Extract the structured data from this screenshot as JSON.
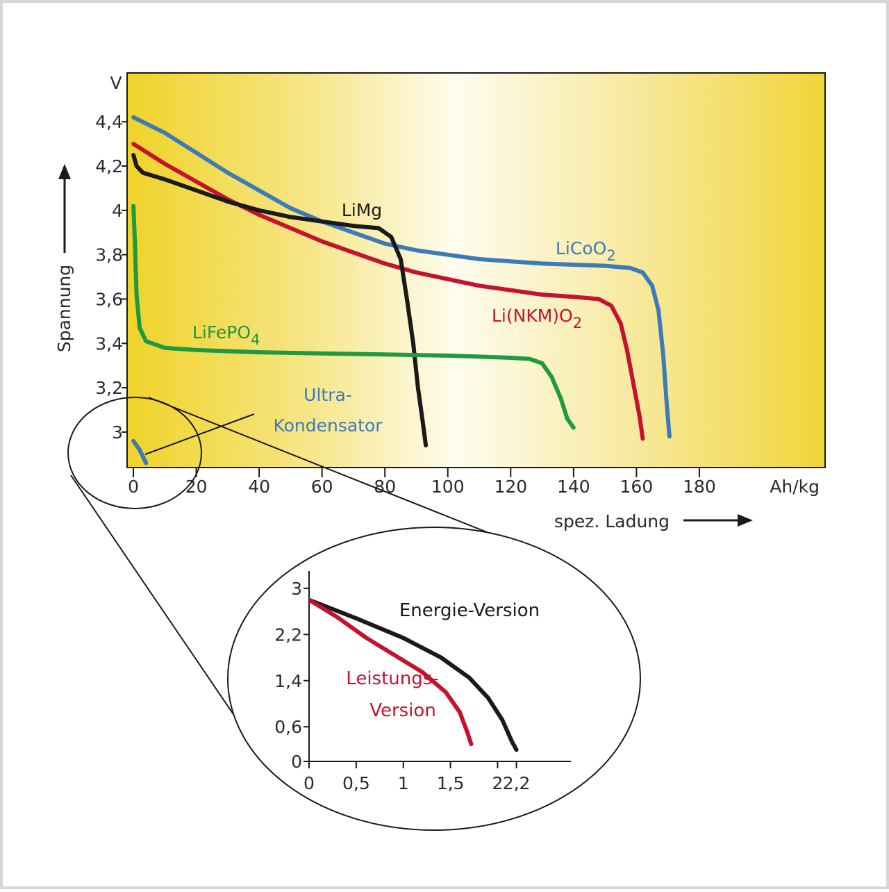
{
  "chart_data": [
    {
      "type": "line",
      "xlabel": "spez. Ladung",
      "ylabel": "Spannung",
      "x_unit": "Ah/kg",
      "y_unit": "V",
      "xlim": [
        -2,
        220
      ],
      "ylim": [
        2.84,
        4.62
      ],
      "x_ticks": [
        0,
        20,
        40,
        60,
        80,
        100,
        120,
        140,
        160,
        180
      ],
      "x_tick_labels": [
        "0",
        "20",
        "40",
        "60",
        "80",
        "100",
        "120",
        "140",
        "160",
        "180"
      ],
      "y_ticks": [
        3.0,
        3.2,
        3.4,
        3.6,
        3.8,
        4.0,
        4.2,
        4.4
      ],
      "y_tick_labels": [
        "3",
        "3,2",
        "3,4",
        "3,6",
        "3,8",
        "4",
        "4,2",
        "4,4"
      ],
      "background": "yellow gradient",
      "series": [
        {
          "name": "LiCoO2",
          "label_main": "LiCoO",
          "label_sub": "2",
          "color": "#3d7ab8",
          "points": [
            [
              0,
              4.42
            ],
            [
              10,
              4.35
            ],
            [
              20,
              4.26
            ],
            [
              30,
              4.17
            ],
            [
              40,
              4.09
            ],
            [
              50,
              4.01
            ],
            [
              60,
              3.95
            ],
            [
              70,
              3.9
            ],
            [
              80,
              3.85
            ],
            [
              90,
              3.82
            ],
            [
              100,
              3.8
            ],
            [
              110,
              3.78
            ],
            [
              120,
              3.77
            ],
            [
              130,
              3.76
            ],
            [
              140,
              3.755
            ],
            [
              150,
              3.75
            ],
            [
              158,
              3.74
            ],
            [
              162,
              3.72
            ],
            [
              165,
              3.66
            ],
            [
              167,
              3.55
            ],
            [
              168.5,
              3.35
            ],
            [
              169.5,
              3.15
            ],
            [
              170.5,
              2.98
            ]
          ]
        },
        {
          "name": "Li(NKM)O2",
          "label_main": "Li(NKM)O",
          "label_sub": "2",
          "color": "#c4122f",
          "points": [
            [
              0,
              4.3
            ],
            [
              10,
              4.21
            ],
            [
              20,
              4.13
            ],
            [
              30,
              4.05
            ],
            [
              40,
              3.98
            ],
            [
              50,
              3.92
            ],
            [
              60,
              3.86
            ],
            [
              70,
              3.81
            ],
            [
              80,
              3.76
            ],
            [
              90,
              3.72
            ],
            [
              100,
              3.69
            ],
            [
              110,
              3.66
            ],
            [
              120,
              3.64
            ],
            [
              130,
              3.62
            ],
            [
              140,
              3.61
            ],
            [
              148,
              3.6
            ],
            [
              152,
              3.57
            ],
            [
              155,
              3.49
            ],
            [
              157,
              3.37
            ],
            [
              159,
              3.22
            ],
            [
              161,
              3.07
            ],
            [
              162,
              2.97
            ]
          ]
        },
        {
          "name": "LiMg",
          "label_main": "LiMg",
          "label_sub": "",
          "color": "#1a1a1a",
          "points": [
            [
              0,
              4.25
            ],
            [
              1,
              4.2
            ],
            [
              3,
              4.17
            ],
            [
              10,
              4.14
            ],
            [
              20,
              4.09
            ],
            [
              30,
              4.04
            ],
            [
              40,
              4.0
            ],
            [
              50,
              3.97
            ],
            [
              60,
              3.95
            ],
            [
              70,
              3.93
            ],
            [
              78,
              3.92
            ],
            [
              82,
              3.88
            ],
            [
              85,
              3.78
            ],
            [
              87,
              3.6
            ],
            [
              89,
              3.4
            ],
            [
              90.5,
              3.2
            ],
            [
              92,
              3.05
            ],
            [
              93,
              2.94
            ]
          ]
        },
        {
          "name": "LiFePO4",
          "label_main": "LiFePO",
          "label_sub": "4",
          "color": "#1f9a3e",
          "points": [
            [
              0,
              4.02
            ],
            [
              0.5,
              3.85
            ],
            [
              1,
              3.62
            ],
            [
              2,
              3.47
            ],
            [
              4,
              3.41
            ],
            [
              10,
              3.38
            ],
            [
              20,
              3.37
            ],
            [
              40,
              3.36
            ],
            [
              60,
              3.355
            ],
            [
              80,
              3.35
            ],
            [
              100,
              3.345
            ],
            [
              110,
              3.34
            ],
            [
              120,
              3.335
            ],
            [
              126,
              3.33
            ],
            [
              130,
              3.31
            ],
            [
              133,
              3.25
            ],
            [
              136,
              3.15
            ],
            [
              138,
              3.06
            ],
            [
              140,
              3.02
            ]
          ]
        },
        {
          "name": "Ultra-Kondensator",
          "label_line1": "Ultra-",
          "label_line2": "Kondensator",
          "color": "#3d7ab8",
          "points": [
            [
              0,
              2.96
            ],
            [
              2,
              2.92
            ],
            [
              4,
              2.86
            ]
          ]
        }
      ]
    },
    {
      "type": "line",
      "x_ticks": [
        0,
        0.5,
        1,
        1.5,
        2,
        2.2
      ],
      "x_tick_labels": [
        "0",
        "0,5",
        "1",
        "1,5",
        "2",
        "2,2"
      ],
      "y_ticks": [
        0,
        0.6,
        1.4,
        2.2,
        3
      ],
      "y_tick_labels": [
        "0",
        "0,6",
        "1,4",
        "2,2",
        "3"
      ],
      "xlim": [
        0,
        2.8
      ],
      "ylim": [
        0,
        3.3
      ],
      "series": [
        {
          "name": "Energie-Version",
          "label_main": "Energie-Version",
          "color": "#1a1a1a",
          "points": [
            [
              0,
              2.8
            ],
            [
              0.5,
              2.48
            ],
            [
              1,
              2.14
            ],
            [
              1.4,
              1.8
            ],
            [
              1.7,
              1.45
            ],
            [
              1.9,
              1.1
            ],
            [
              2.05,
              0.72
            ],
            [
              2.15,
              0.35
            ],
            [
              2.2,
              0.2
            ]
          ]
        },
        {
          "name": "Leistungs-Version",
          "label_line1": "Leistungs-",
          "label_line2": "Version",
          "color": "#c4122f",
          "points": [
            [
              0,
              2.8
            ],
            [
              0.3,
              2.5
            ],
            [
              0.6,
              2.15
            ],
            [
              0.9,
              1.85
            ],
            [
              1.2,
              1.55
            ],
            [
              1.45,
              1.2
            ],
            [
              1.6,
              0.85
            ],
            [
              1.68,
              0.5
            ],
            [
              1.72,
              0.3
            ]
          ]
        }
      ]
    }
  ]
}
